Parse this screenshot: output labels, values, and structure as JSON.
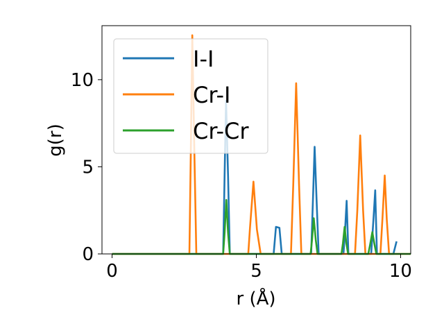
{
  "chart_data": {
    "type": "line",
    "title": "",
    "xlabel": "r (Å)",
    "ylabel": "g(r)",
    "xlim": [
      -0.35,
      10.35
    ],
    "ylim": [
      0,
      13.1
    ],
    "xticks": [
      0,
      5,
      10
    ],
    "yticks": [
      0,
      5,
      10
    ],
    "grid": false,
    "legend_position": "upper-left",
    "series": [
      {
        "name": "I-I",
        "color": "#1f77b4",
        "x": [
          0,
          3.85,
          3.9,
          3.95,
          4.02,
          4.08,
          4.15,
          5.6,
          5.68,
          5.8,
          5.88,
          6.9,
          6.96,
          7.02,
          7.09,
          7.16,
          8.02,
          8.07,
          8.13,
          8.19,
          8.98,
          9.06,
          9.12,
          9.18,
          9.75,
          9.86
        ],
        "values": [
          0,
          0,
          4.5,
          8.8,
          4.5,
          0,
          0,
          0,
          1.55,
          1.5,
          0,
          0,
          3.0,
          6.15,
          3.0,
          0,
          0,
          1.2,
          3.05,
          0,
          0,
          2.0,
          3.65,
          0,
          0,
          0.72
        ]
      },
      {
        "name": "Cr-I",
        "color": "#ff7f0e",
        "x": [
          0,
          2.68,
          2.73,
          2.78,
          2.85,
          2.92,
          4.72,
          4.78,
          4.9,
          5.02,
          5.15,
          6.2,
          6.28,
          6.38,
          6.48,
          6.56,
          8.42,
          8.5,
          8.6,
          8.7,
          8.78,
          9.3,
          9.37,
          9.45,
          9.52,
          9.6,
          10.35
        ],
        "values": [
          0,
          0,
          6,
          12.55,
          6,
          0,
          0,
          1.5,
          4.15,
          1.4,
          0,
          0,
          4.0,
          9.8,
          4.0,
          0,
          0,
          2.5,
          6.8,
          2.5,
          0,
          0,
          2.0,
          4.5,
          2.0,
          0,
          0
        ]
      },
      {
        "name": "Cr-Cr",
        "color": "#2ca02c",
        "x": [
          0,
          3.85,
          3.9,
          3.96,
          4.02,
          4.08,
          6.88,
          6.93,
          6.99,
          7.06,
          7.12,
          7.95,
          8.0,
          8.06,
          8.12,
          8.18,
          8.88,
          8.94,
          9.02,
          9.1,
          9.16,
          10.35
        ],
        "values": [
          0,
          0,
          1.2,
          3.1,
          1.2,
          0,
          0,
          0.8,
          2.05,
          0.8,
          0,
          0,
          0.6,
          1.55,
          0.6,
          0,
          0,
          0.5,
          1.25,
          0.5,
          0,
          0
        ]
      }
    ]
  }
}
